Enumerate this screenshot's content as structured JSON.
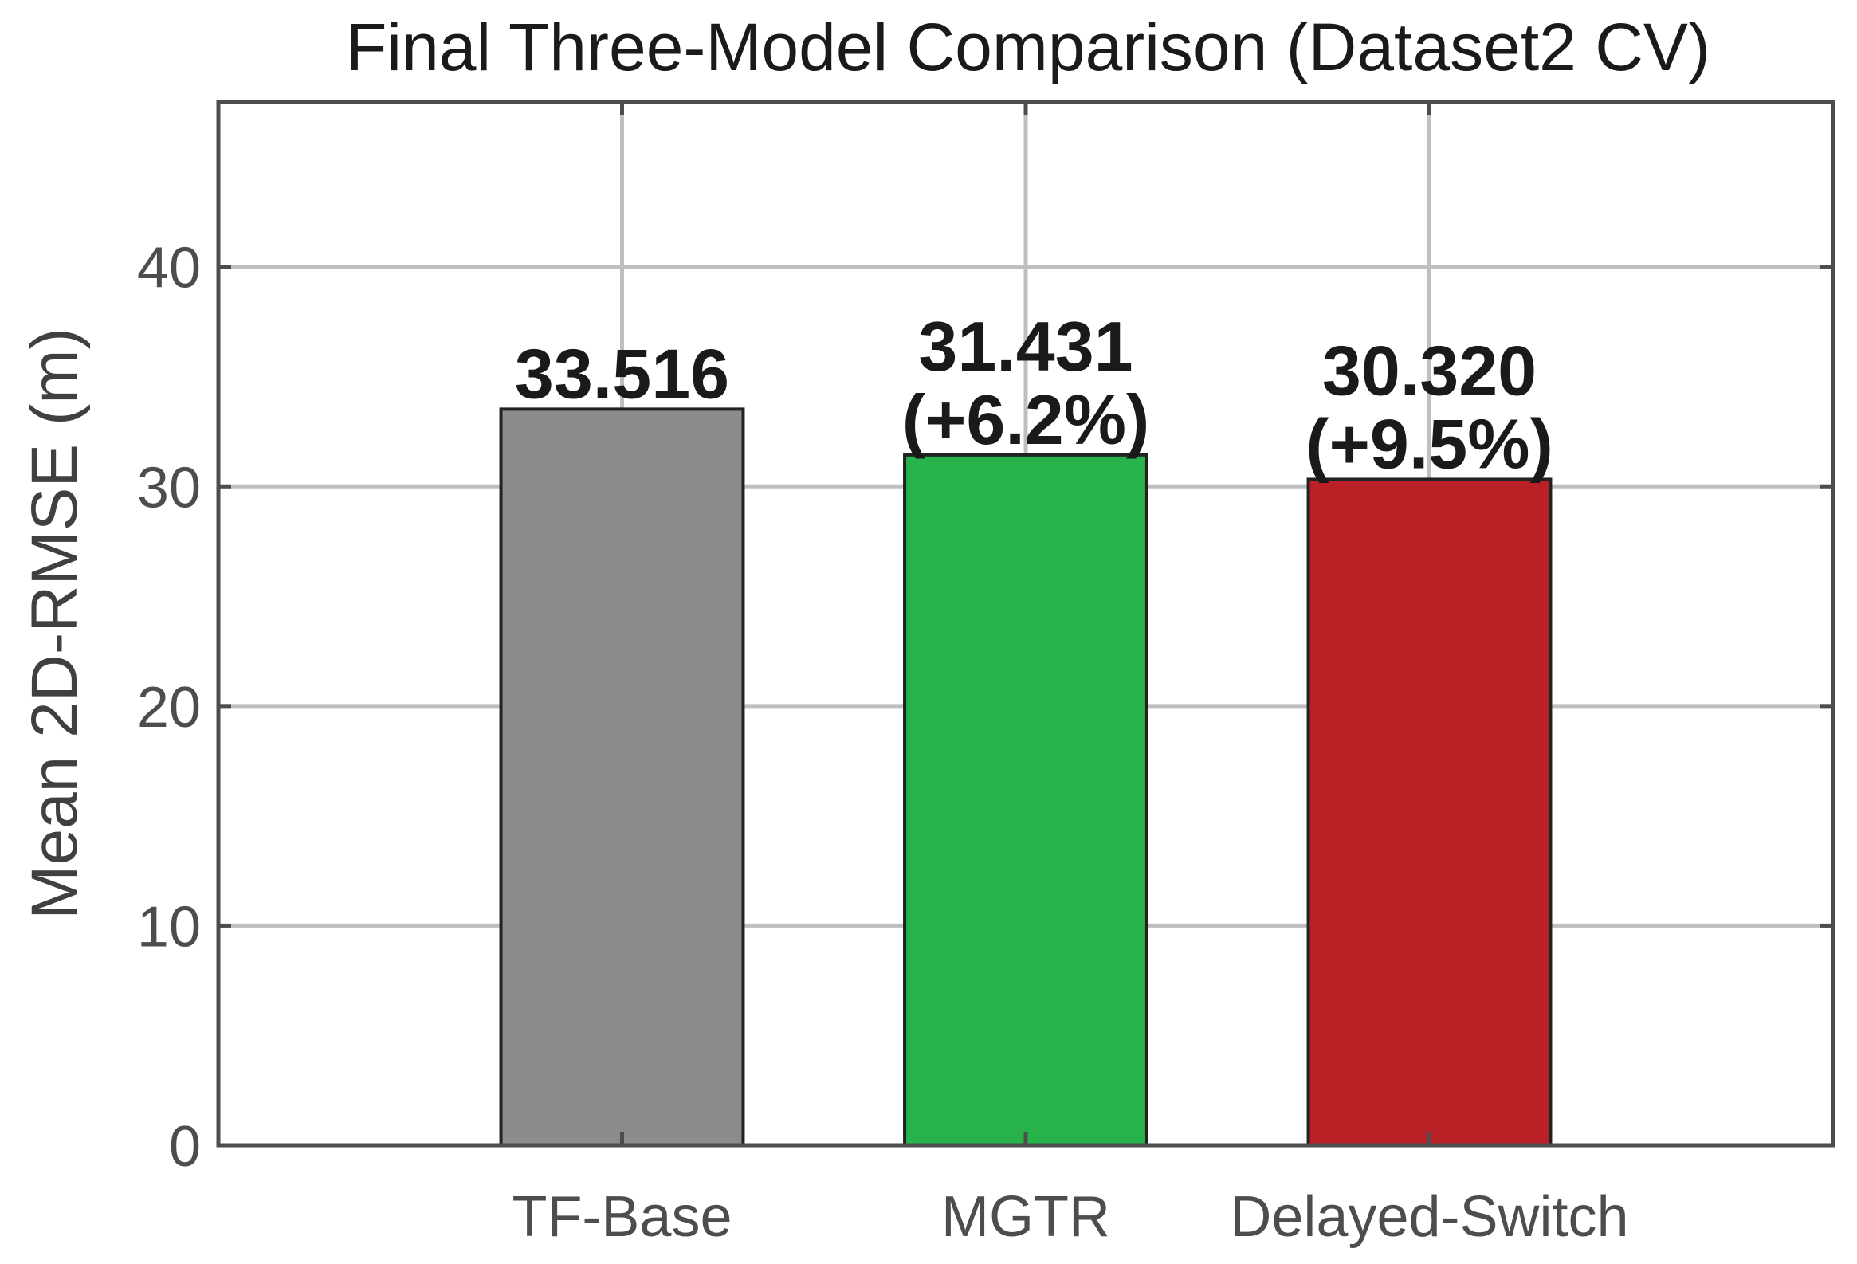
{
  "chart_data": {
    "type": "bar",
    "title": "Final Three-Model Comparison (Dataset2 CV)",
    "xlabel": "",
    "ylabel": "Mean 2D-RMSE (m)",
    "categories": [
      "TF-Base",
      "MGTR",
      "Delayed-Switch"
    ],
    "values": [
      33.516,
      31.431,
      30.32
    ],
    "data_labels": [
      [
        "33.516"
      ],
      [
        "31.431",
        "(+6.2%)"
      ],
      [
        "30.320",
        "(+9.5%)"
      ]
    ],
    "colors": [
      "#8c8c8c",
      "#27b24c",
      "#bb2026"
    ],
    "xlim": [
      0,
      4
    ],
    "ylim": [
      0,
      47.5
    ],
    "yticks": [
      0,
      10,
      20,
      30,
      40
    ],
    "ytick_labels": [
      "0",
      "10",
      "20",
      "30",
      "40"
    ],
    "grid": true,
    "legend": "none"
  }
}
